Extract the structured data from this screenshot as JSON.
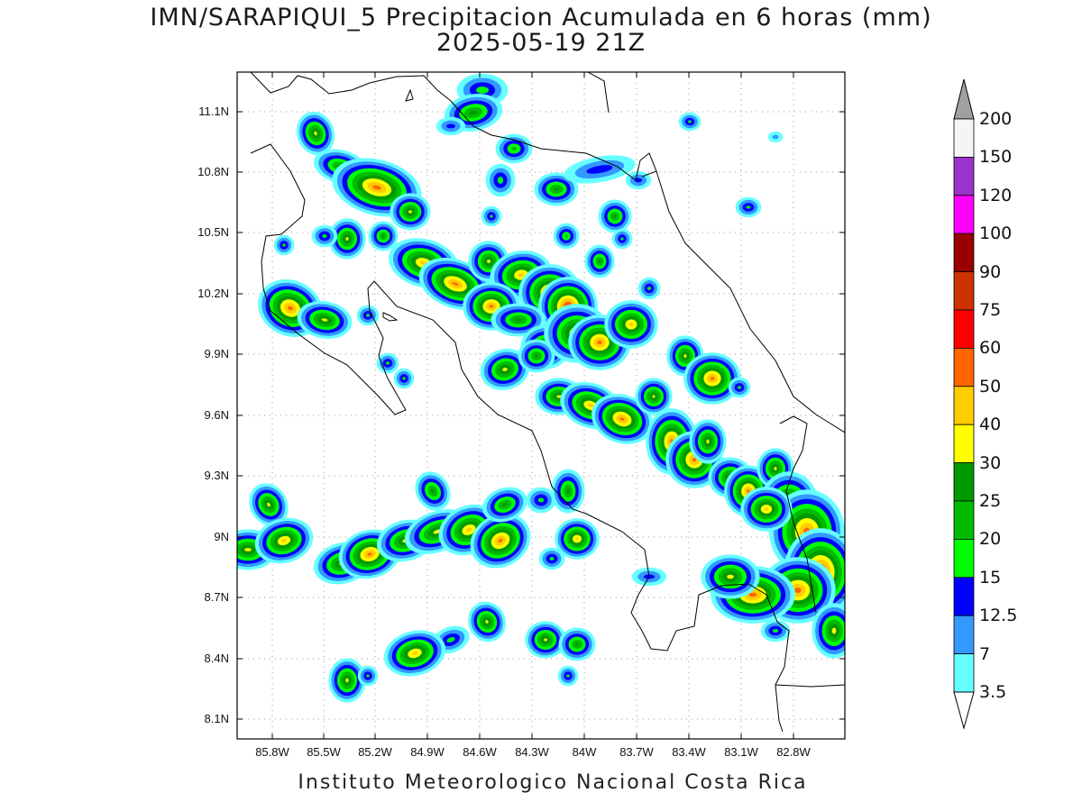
{
  "title": {
    "line1": "IMN/SARAPIQUI_5 Precipitacion Acumulada en 6 horas (mm)",
    "line2": "2025-05-19 21Z"
  },
  "footer": "Instituto Meteorologico Nacional Costa Rica",
  "lat_labels": [
    "11.1N",
    "10.8N",
    "10.5N",
    "10.2N",
    "9.9N",
    "9.6N",
    "9.3N",
    "9N",
    "8.7N",
    "8.4N",
    "8.1N"
  ],
  "lon_labels": [
    "85.8W",
    "85.5W",
    "85.2W",
    "84.9W",
    "84.6W",
    "84.3W",
    "84W",
    "83.7W",
    "83.4W",
    "83.1W",
    "82.8W"
  ],
  "colorbar": {
    "labels": [
      "200",
      "150",
      "120",
      "100",
      "90",
      "75",
      "60",
      "50",
      "40",
      "30",
      "25",
      "20",
      "15",
      "12.5",
      "7",
      "3.5"
    ],
    "colors": [
      "#f5f5f5",
      "#9933cc",
      "#ff00ff",
      "#990000",
      "#cc3300",
      "#ff0000",
      "#ff6600",
      "#ffcc00",
      "#ffff00",
      "#009900",
      "#00bb00",
      "#00ff00",
      "#0000ff",
      "#3399ff",
      "#66ffff"
    ],
    "over_color": "#a0a0a0",
    "under_color": "#ffffff"
  },
  "precip_colors": {
    "c3": "#66ffff",
    "c7": "#3399ff",
    "c12": "#0000ff",
    "c15": "#00ff00",
    "c20": "#00bb00",
    "c25": "#009900",
    "c30": "#ffff00",
    "c40": "#ffcc00",
    "c50": "#ff6600",
    "c60": "#ff0000"
  }
}
